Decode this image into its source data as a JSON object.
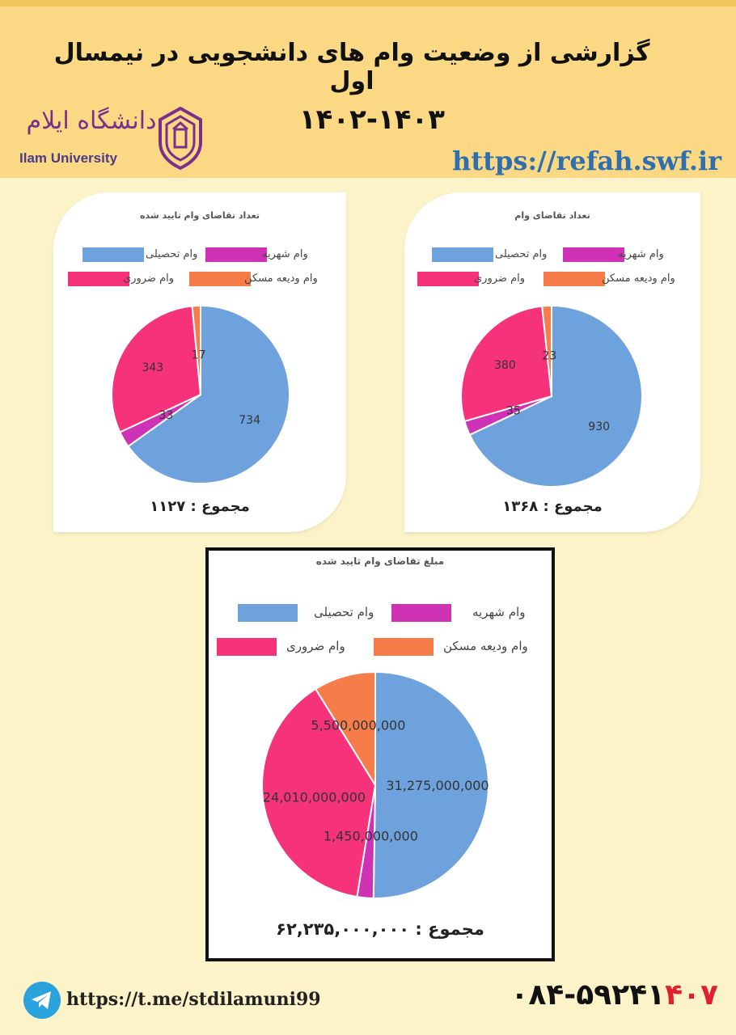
{
  "header": {
    "title": "گزارشی از وضعیت وام های دانشجویی در نیمسال اول",
    "years": "۱۴۰۲-۱۴۰۳",
    "url": "https://refah.swf.ir",
    "logo_fa": "دانشگاه ایلام",
    "logo_en": "Ilam University"
  },
  "footer": {
    "telegram_url": "https://t.me/stdilamuni99",
    "phone_prefix": "۰۸۴-۵۹۲۴۱",
    "phone_suffix": "۴۰۷"
  },
  "colors": {
    "tahsili": "#6ea2dc",
    "shahriye": "#cf32b5",
    "zaroori": "#f6337a",
    "maskan": "#f67c4a"
  },
  "chart_data": [
    {
      "type": "pie",
      "title": "تعداد تقاضای وام",
      "categories": [
        "وام تحصیلی",
        "وام شهریه",
        "وام ضروری",
        "وام ودیعه مسکن"
      ],
      "values": [
        930,
        35,
        380,
        23
      ],
      "labels": [
        "930",
        "35",
        "380",
        "23"
      ],
      "total_label": "مجموع : ۱۳۶۸",
      "legend": "top"
    },
    {
      "type": "pie",
      "title": "تعداد تقاضای وام تایید شده",
      "categories": [
        "وام تحصیلی",
        "وام شهریه",
        "وام ضروری",
        "وام ودیعه مسکن"
      ],
      "values": [
        734,
        33,
        343,
        17
      ],
      "labels": [
        "734",
        "33",
        "343",
        "17"
      ],
      "total_label": "مجموع : ۱۱۲۷",
      "legend": "top"
    },
    {
      "type": "pie",
      "title": "مبلغ تقاضای وام تایید شده",
      "categories": [
        "وام تحصیلی",
        "وام شهریه",
        "وام ضروری",
        "وام ودیعه مسکن"
      ],
      "values": [
        31275000000,
        1450000000,
        24010000000,
        5500000000
      ],
      "labels": [
        "31,275,000,000",
        "1,450,000,000",
        "24,010,000,000",
        "5,500,000,000"
      ],
      "total_label": "مجموع : ۶۲,۲۳۵,۰۰۰,۰۰۰",
      "legend": "top"
    }
  ]
}
